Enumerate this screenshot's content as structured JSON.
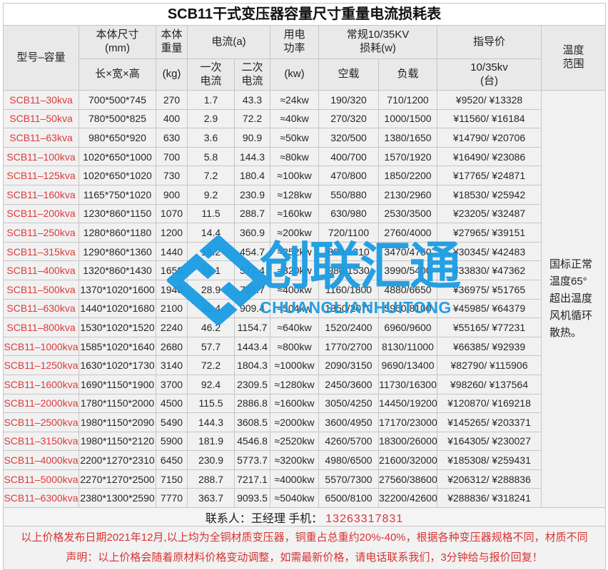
{
  "title": "SCB11干式变压器容量尺寸重量电流损耗表",
  "header": {
    "model": "型号–容量",
    "size_top": "本体尺寸\n(mm)",
    "size_bottom": "长×宽×高",
    "weight_top": "本体\n重量",
    "weight_bottom": "(kg)",
    "current": "电流(a)",
    "current_primary": "一次\n电流",
    "current_secondary": "二次\n电流",
    "power_top": "用电\n功率",
    "power_bottom": "(kw)",
    "loss": "常规10/35KV\n损耗(w)",
    "loss_noload": "空载",
    "loss_load": "负载",
    "price": "指导价",
    "price_sub": "10/35kv\n(台)",
    "temp": "温度\n范围"
  },
  "temperature_note": "国标正常\n温度65°\n超出温度\n风机循环\n散热。",
  "rows": [
    {
      "model": "SCB11–30kva",
      "size": "700*500*745",
      "weight": "270",
      "i1": "1.7",
      "i2": "43.3",
      "kw": "≈24kw",
      "noload": "190/320",
      "load": "710/1200",
      "price": "¥9520/ ¥13328"
    },
    {
      "model": "SCB11–50kva",
      "size": "780*500*825",
      "weight": "400",
      "i1": "2.9",
      "i2": "72.2",
      "kw": "≈40kw",
      "noload": "270/320",
      "load": "1000/1500",
      "price": "¥11560/ ¥16184"
    },
    {
      "model": "SCB11–63kva",
      "size": "980*650*920",
      "weight": "630",
      "i1": "3.6",
      "i2": "90.9",
      "kw": "≈50kw",
      "noload": "320/500",
      "load": "1380/1650",
      "price": "¥14790/ ¥20706"
    },
    {
      "model": "SCB11–100kva",
      "size": "1020*650*1000",
      "weight": "700",
      "i1": "5.8",
      "i2": "144.3",
      "kw": "≈80kw",
      "noload": "400/700",
      "load": "1570/1920",
      "price": "¥16490/ ¥23086"
    },
    {
      "model": "SCB11–125kva",
      "size": "1020*650*1020",
      "weight": "730",
      "i1": "7.2",
      "i2": "180.4",
      "kw": "≈100kw",
      "noload": "470/800",
      "load": "1850/2200",
      "price": "¥17765/ ¥24871"
    },
    {
      "model": "SCB11–160kva",
      "size": "1165*750*1020",
      "weight": "900",
      "i1": "9.2",
      "i2": "230.9",
      "kw": "≈128kw",
      "noload": "550/880",
      "load": "2130/2960",
      "price": "¥18530/ ¥25942"
    },
    {
      "model": "SCB11–200kva",
      "size": "1230*860*1150",
      "weight": "1070",
      "i1": "11.5",
      "i2": "288.7",
      "kw": "≈160kw",
      "noload": "630/980",
      "load": "2530/3500",
      "price": "¥23205/ ¥32487"
    },
    {
      "model": "SCB11–250kva",
      "size": "1280*860*1180",
      "weight": "1200",
      "i1": "14.4",
      "i2": "360.9",
      "kw": "≈200kw",
      "noload": "720/1100",
      "load": "2760/4000",
      "price": "¥27965/ ¥39151"
    },
    {
      "model": "SCB11–315kva",
      "size": "1290*860*1360",
      "weight": "1440",
      "i1": "18.2",
      "i2": "454.7",
      "kw": "≈252kw",
      "noload": "880/1310",
      "load": "3470/4750",
      "price": "¥30345/ ¥42483"
    },
    {
      "model": "SCB11–400kva",
      "size": "1320*860*1430",
      "weight": "1650",
      "i1": "23.1",
      "i2": "577.4",
      "kw": "≈320kw",
      "noload": "980/1530",
      "load": "3990/5400",
      "price": "¥33830/ ¥47362"
    },
    {
      "model": "SCB11–500kva",
      "size": "1370*1020*1600",
      "weight": "1940",
      "i1": "28.9",
      "i2": "721.7",
      "kw": "≈400kw",
      "noload": "1160/1800",
      "load": "4880/6650",
      "price": "¥36975/ ¥51765"
    },
    {
      "model": "SCB11–630kva",
      "size": "1440*1020*1680",
      "weight": "2100",
      "i1": "36.4",
      "i2": "909.4",
      "kw": "≈504kw",
      "noload": "1350/2070",
      "load": "5960/8100",
      "price": "¥45985/ ¥64379"
    },
    {
      "model": "SCB11–800kva",
      "size": "1530*1020*1520",
      "weight": "2240",
      "i1": "46.2",
      "i2": "1154.7",
      "kw": "≈640kw",
      "noload": "1520/2400",
      "load": "6960/9600",
      "price": "¥55165/ ¥77231"
    },
    {
      "model": "SCB11–1000kva",
      "size": "1585*1020*1640",
      "weight": "2680",
      "i1": "57.7",
      "i2": "1443.4",
      "kw": "≈800kw",
      "noload": "1770/2700",
      "load": "8130/11000",
      "price": "¥66385/ ¥92939"
    },
    {
      "model": "SCB11–1250kva",
      "size": "1630*1020*1730",
      "weight": "3140",
      "i1": "72.2",
      "i2": "1804.3",
      "kw": "≈1000kw",
      "noload": "2090/3150",
      "load": "9690/13400",
      "price": "¥82790/ ¥115906"
    },
    {
      "model": "SCB11–1600kva",
      "size": "1690*1150*1900",
      "weight": "3700",
      "i1": "92.4",
      "i2": "2309.5",
      "kw": "≈1280kw",
      "noload": "2450/3600",
      "load": "11730/16300",
      "price": "¥98260/ ¥137564"
    },
    {
      "model": "SCB11–2000kva",
      "size": "1780*1150*2000",
      "weight": "4500",
      "i1": "115.5",
      "i2": "2886.8",
      "kw": "≈1600kw",
      "noload": "3050/4250",
      "load": "14450/19200",
      "price": "¥120870/ ¥169218"
    },
    {
      "model": "SCB11–2500kva",
      "size": "1980*1150*2090",
      "weight": "5490",
      "i1": "144.3",
      "i2": "3608.5",
      "kw": "≈2000kw",
      "noload": "3600/4950",
      "load": "17170/23000",
      "price": "¥145265/ ¥203371"
    },
    {
      "model": "SCB11–3150kva",
      "size": "1980*1150*2120",
      "weight": "5900",
      "i1": "181.9",
      "i2": "4546.8",
      "kw": "≈2520kw",
      "noload": "4260/5700",
      "load": "18300/26000",
      "price": "¥164305/ ¥230027"
    },
    {
      "model": "SCB11–4000kva",
      "size": "2200*1270*2310",
      "weight": "6450",
      "i1": "230.9",
      "i2": "5773.7",
      "kw": "≈3200kw",
      "noload": "4980/6500",
      "load": "21600/32000",
      "price": "¥185308/ ¥259431"
    },
    {
      "model": "SCB11–5000kva",
      "size": "2270*1270*2500",
      "weight": "7150",
      "i1": "288.7",
      "i2": "7217.1",
      "kw": "≈4000kw",
      "noload": "5570/7300",
      "load": "27560/38600",
      "price": "¥206312/ ¥288836"
    },
    {
      "model": "SCB11–6300kva",
      "size": "2380*1300*2590",
      "weight": "7770",
      "i1": "363.7",
      "i2": "9093.5",
      "kw": "≈5040kw",
      "noload": "6500/8100",
      "load": "32200/42600",
      "price": "¥288836/ ¥318241"
    }
  ],
  "contact": {
    "label": "联系人：王经理  手机：",
    "phone": "13263317831"
  },
  "notes": [
    "以上价格发布日期2021年12月,以上均为全铜材质变压器，铜重占总重约20%-40%，根据各种变压器规格不同，材质不同",
    "声明：以上价格会随着原材料价格变动调整，如需最新价格，请电话联系我们，3分钟给与报价回复！"
  ],
  "watermark": {
    "cn": "创联汇通",
    "en": "CHUANGLIANHUITONG",
    "color": "#1b9ce3"
  },
  "colors": {
    "model_red": "#dd3b3b",
    "note_red": "#d63434",
    "header_bg": "#e9e9e9",
    "row_bg": "#f1f1f1",
    "border": "#c6c6c6"
  }
}
